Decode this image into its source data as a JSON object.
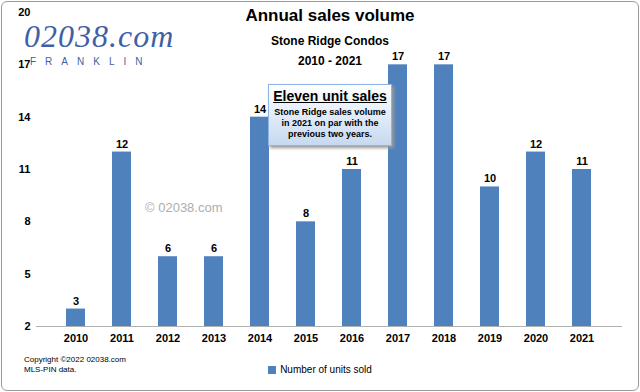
{
  "chart_data": {
    "type": "bar",
    "title": "Annual sales volume",
    "subtitle": [
      "Stone Ridge Condos",
      "2010 - 2021"
    ],
    "logo": {
      "text": "02038.com",
      "subtext": "FRANKLIN"
    },
    "annotation": {
      "title": "Eleven unit sales",
      "text": "Stone Ridge sales volume in 2021 on par with the previous two years."
    },
    "watermark": "© 02038.com",
    "source": [
      "Copyright ©2022 02038.com",
      "MLS-PIN data."
    ],
    "categories": [
      "2010",
      "2011",
      "2012",
      "2013",
      "2014",
      "2015",
      "2016",
      "2017",
      "2018",
      "2019",
      "2020",
      "2021"
    ],
    "series": [
      {
        "name": "Number of units sold",
        "color": "#4f81bd",
        "values": [
          3,
          12,
          6,
          6,
          14,
          8,
          11,
          17,
          17,
          10,
          12,
          11
        ]
      }
    ],
    "ylim": [
      2,
      20
    ],
    "yticks": [
      2,
      5,
      8,
      11,
      14,
      17,
      20
    ],
    "grid": false,
    "legend": "bottom",
    "data_labels": true
  }
}
